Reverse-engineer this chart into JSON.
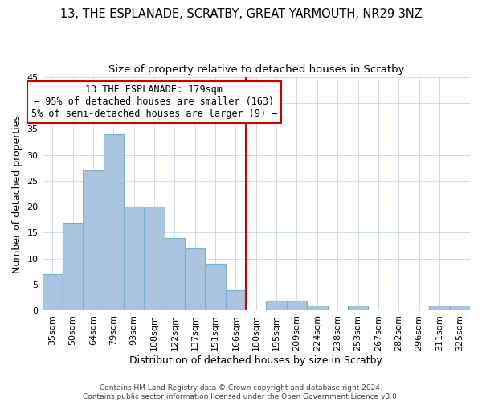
{
  "title": "13, THE ESPLANADE, SCRATBY, GREAT YARMOUTH, NR29 3NZ",
  "subtitle": "Size of property relative to detached houses in Scratby",
  "xlabel": "Distribution of detached houses by size in Scratby",
  "ylabel": "Number of detached properties",
  "bar_labels": [
    "35sqm",
    "50sqm",
    "64sqm",
    "79sqm",
    "93sqm",
    "108sqm",
    "122sqm",
    "137sqm",
    "151sqm",
    "166sqm",
    "180sqm",
    "195sqm",
    "209sqm",
    "224sqm",
    "238sqm",
    "253sqm",
    "267sqm",
    "282sqm",
    "296sqm",
    "311sqm",
    "325sqm"
  ],
  "bar_values": [
    7,
    17,
    27,
    34,
    20,
    20,
    14,
    12,
    9,
    4,
    0,
    2,
    2,
    1,
    0,
    1,
    0,
    0,
    0,
    1,
    1
  ],
  "bar_color": "#aac4e0",
  "bar_edge_color": "#7aafd4",
  "vline_color": "#cc0000",
  "annotation_line1": "13 THE ESPLANADE: 179sqm",
  "annotation_line2": "← 95% of detached houses are smaller (163)",
  "annotation_line3": "5% of semi-detached houses are larger (9) →",
  "footer1": "Contains HM Land Registry data © Crown copyright and database right 2024.",
  "footer2": "Contains public sector information licensed under the Open Government Licence v3.0.",
  "ylim": [
    0,
    45
  ],
  "yticks": [
    0,
    5,
    10,
    15,
    20,
    25,
    30,
    35,
    40,
    45
  ],
  "title_fontsize": 10.5,
  "subtitle_fontsize": 9.5,
  "ylabel_fontsize": 9,
  "xlabel_fontsize": 9,
  "tick_fontsize": 8,
  "ann_fontsize": 8.5,
  "footer_fontsize": 6.5,
  "vline_idx": 10
}
